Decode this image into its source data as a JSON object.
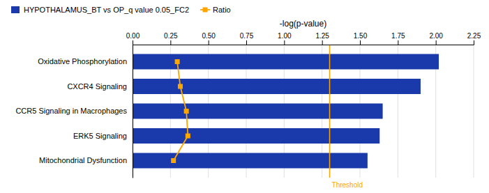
{
  "chart_data": {
    "type": "bar",
    "orientation": "horizontal",
    "xlabel": "-log(p-value)",
    "categories": [
      "Oxidative Phosphorylation",
      "CXCR4 Signaling",
      "CCR5 Signaling in Macrophages",
      "ERK5 Signaling",
      "Mitochondrial Dysfunction"
    ],
    "series": [
      {
        "name": "HYPOTHALAMUS_BT vs OP_q value 0.05_FC2",
        "type": "bar",
        "color": "#1a3aab",
        "values": [
          2.02,
          1.9,
          1.65,
          1.63,
          1.55
        ]
      },
      {
        "name": "Ratio",
        "type": "line",
        "color": "#FFA500",
        "marker": "square",
        "values": [
          0.295,
          0.315,
          0.355,
          0.365,
          0.27
        ]
      }
    ],
    "xlim": [
      0.0,
      2.25
    ],
    "xticks": [
      {
        "value": 0.0,
        "label": "0.00"
      },
      0.25,
      {
        "value": 0.5,
        "label": "0.50"
      },
      0.75,
      {
        "value": 1.0,
        "label": "1.00"
      },
      1.25,
      {
        "value": 1.5,
        "label": "1.50"
      },
      1.75,
      {
        "value": 2.0,
        "label": "2.00"
      },
      2.25
    ],
    "grid": true,
    "legend": "top-left",
    "annotations": [
      {
        "type": "vline",
        "x": 1.3,
        "text": "Threshold",
        "color": "#FFA500"
      }
    ]
  }
}
